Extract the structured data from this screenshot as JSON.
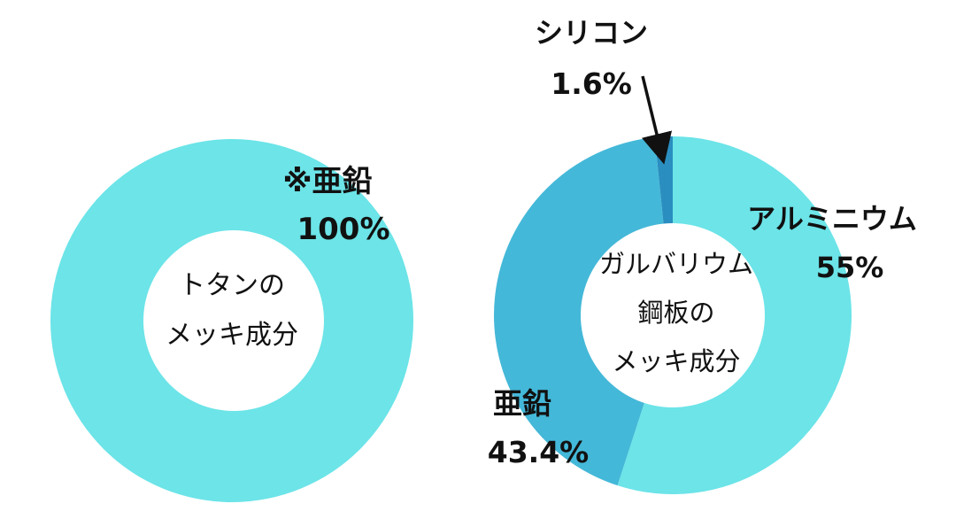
{
  "chart_data": [
    {
      "type": "pie",
      "center_label": [
        "トタンの",
        "メッキ成分"
      ],
      "slices": [
        {
          "label": "※亜鉛",
          "value": 100,
          "value_label": "100%",
          "color": "#6ce4e8"
        }
      ]
    },
    {
      "type": "pie",
      "center_label": [
        "ガルバリウム",
        "鋼板の",
        "メッキ成分"
      ],
      "slices": [
        {
          "label": "アルミニウム",
          "value": 55,
          "value_label": "55%",
          "color": "#6ce4e8"
        },
        {
          "label": "亜鉛",
          "value": 43.4,
          "value_label": "43.4%",
          "color": "#44b8d8"
        },
        {
          "label": "シリコン",
          "value": 1.6,
          "value_label": "1.6%",
          "color": "#2a8ec0"
        }
      ]
    }
  ]
}
